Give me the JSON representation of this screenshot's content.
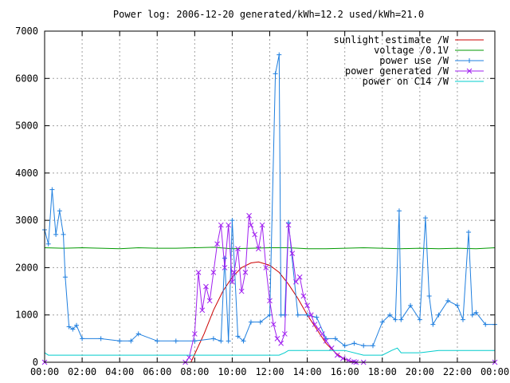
{
  "chart_data": {
    "type": "line",
    "title": "Power log: 2006-12-20 generated/kWh=12.2 used/kWh=21.0",
    "xlabel": "",
    "ylabel": "",
    "xlim": [
      0,
      24
    ],
    "ylim": [
      0,
      7000
    ],
    "grid": true,
    "legend_position": "top-right",
    "x_tick_labels": [
      "00:00",
      "02:00",
      "04:00",
      "06:00",
      "08:00",
      "10:00",
      "12:00",
      "14:00",
      "16:00",
      "18:00",
      "20:00",
      "22:00",
      "00:00"
    ],
    "x_tick_values": [
      0,
      2,
      4,
      6,
      8,
      10,
      12,
      14,
      16,
      18,
      20,
      22,
      24
    ],
    "y_tick_values": [
      0,
      1000,
      2000,
      3000,
      4000,
      5000,
      6000,
      7000
    ],
    "y_tick_labels": [
      "0",
      "1000",
      "2000",
      "3000",
      "4000",
      "5000",
      "6000",
      "7000"
    ],
    "series": [
      {
        "name": "sunlight estimate /W",
        "color": "#cc0000",
        "marker": "none",
        "x": [
          7.8,
          8.5,
          9.0,
          9.5,
          10.0,
          10.5,
          11.0,
          11.4,
          12.0,
          12.5,
          13.0,
          13.5,
          14.0,
          14.5,
          15.0,
          15.5,
          16.0,
          16.5
        ],
        "y": [
          0,
          600,
          1100,
          1500,
          1800,
          2000,
          2100,
          2120,
          2050,
          1900,
          1650,
          1350,
          1000,
          700,
          400,
          200,
          60,
          0
        ]
      },
      {
        "name": "voltage /0.1V",
        "color": "#009900",
        "marker": "none",
        "x": [
          0,
          1,
          2,
          3,
          4,
          5,
          6,
          7,
          8,
          9,
          10,
          11,
          12,
          13,
          14,
          15,
          16,
          17,
          18,
          19,
          20,
          21,
          22,
          23,
          24
        ],
        "y": [
          2420,
          2410,
          2420,
          2410,
          2400,
          2420,
          2410,
          2410,
          2420,
          2430,
          2400,
          2410,
          2420,
          2420,
          2400,
          2400,
          2410,
          2420,
          2410,
          2400,
          2410,
          2400,
          2410,
          2400,
          2420
        ]
      },
      {
        "name": "power use /W",
        "color": "#1f7fdf",
        "marker": "plus",
        "x": [
          0,
          0.2,
          0.4,
          0.6,
          0.8,
          1.0,
          1.1,
          1.3,
          1.5,
          1.7,
          2.0,
          3.0,
          4.0,
          4.6,
          5.0,
          6.0,
          7.0,
          8.0,
          9.0,
          9.4,
          9.6,
          9.8,
          10.0,
          10.3,
          10.6,
          11.0,
          11.5,
          12.0,
          12.3,
          12.5,
          12.6,
          12.8,
          13.0,
          13.5,
          14.0,
          14.5,
          15.0,
          15.5,
          16.0,
          16.5,
          17.0,
          17.5,
          18.0,
          18.4,
          18.7,
          18.9,
          19.0,
          19.5,
          20.0,
          20.3,
          20.5,
          20.7,
          21.0,
          21.5,
          22.0,
          22.3,
          22.6,
          22.8,
          23.0,
          23.5,
          24.0
        ],
        "y": [
          2800,
          2500,
          3650,
          2700,
          3200,
          2700,
          1800,
          750,
          700,
          780,
          500,
          500,
          450,
          450,
          600,
          450,
          450,
          450,
          500,
          450,
          2200,
          450,
          3000,
          550,
          450,
          850,
          850,
          1000,
          6100,
          6500,
          1000,
          1000,
          2950,
          1000,
          1000,
          950,
          500,
          500,
          350,
          400,
          350,
          350,
          850,
          1000,
          900,
          3200,
          900,
          1200,
          900,
          3050,
          1400,
          800,
          1000,
          1300,
          1200,
          900,
          2750,
          1000,
          1050,
          800,
          800
        ]
      },
      {
        "name": "power generated /W",
        "color": "#a020f0",
        "marker": "cross",
        "x": [
          0,
          7.5,
          7.7,
          8.0,
          8.2,
          8.4,
          8.6,
          8.8,
          9.0,
          9.2,
          9.4,
          9.6,
          9.8,
          10.0,
          10.1,
          10.3,
          10.5,
          10.7,
          10.9,
          11.0,
          11.2,
          11.4,
          11.6,
          11.8,
          12.0,
          12.2,
          12.4,
          12.6,
          12.8,
          13.0,
          13.2,
          13.4,
          13.6,
          13.8,
          14.0,
          14.2,
          14.4,
          14.6,
          14.8,
          15.0,
          15.3,
          15.6,
          15.9,
          16.2,
          16.5,
          16.6,
          17.0,
          24.0
        ],
        "y": [
          0,
          0,
          100,
          600,
          1900,
          1100,
          1600,
          1300,
          1900,
          2500,
          2900,
          2000,
          2900,
          1700,
          1900,
          2400,
          1500,
          1900,
          3100,
          2900,
          2700,
          2400,
          2900,
          2000,
          1300,
          800,
          500,
          400,
          600,
          2900,
          2300,
          1700,
          1800,
          1400,
          1200,
          1000,
          800,
          700,
          600,
          450,
          300,
          150,
          80,
          40,
          10,
          0,
          0,
          0
        ]
      },
      {
        "name": "power on C14 /W",
        "color": "#00cccc",
        "marker": "none",
        "x": [
          0,
          0.2,
          1,
          2,
          3,
          4,
          5,
          6,
          7,
          8,
          9,
          10,
          11,
          12,
          12.5,
          12.8,
          13.0,
          14,
          15,
          16,
          17,
          18,
          18.5,
          18.8,
          19.0,
          20,
          21,
          22,
          23,
          24
        ],
        "y": [
          200,
          150,
          150,
          150,
          150,
          150,
          150,
          150,
          150,
          150,
          150,
          150,
          150,
          150,
          150,
          200,
          250,
          250,
          250,
          250,
          150,
          150,
          250,
          300,
          200,
          200,
          250,
          250,
          250,
          250
        ]
      }
    ]
  }
}
